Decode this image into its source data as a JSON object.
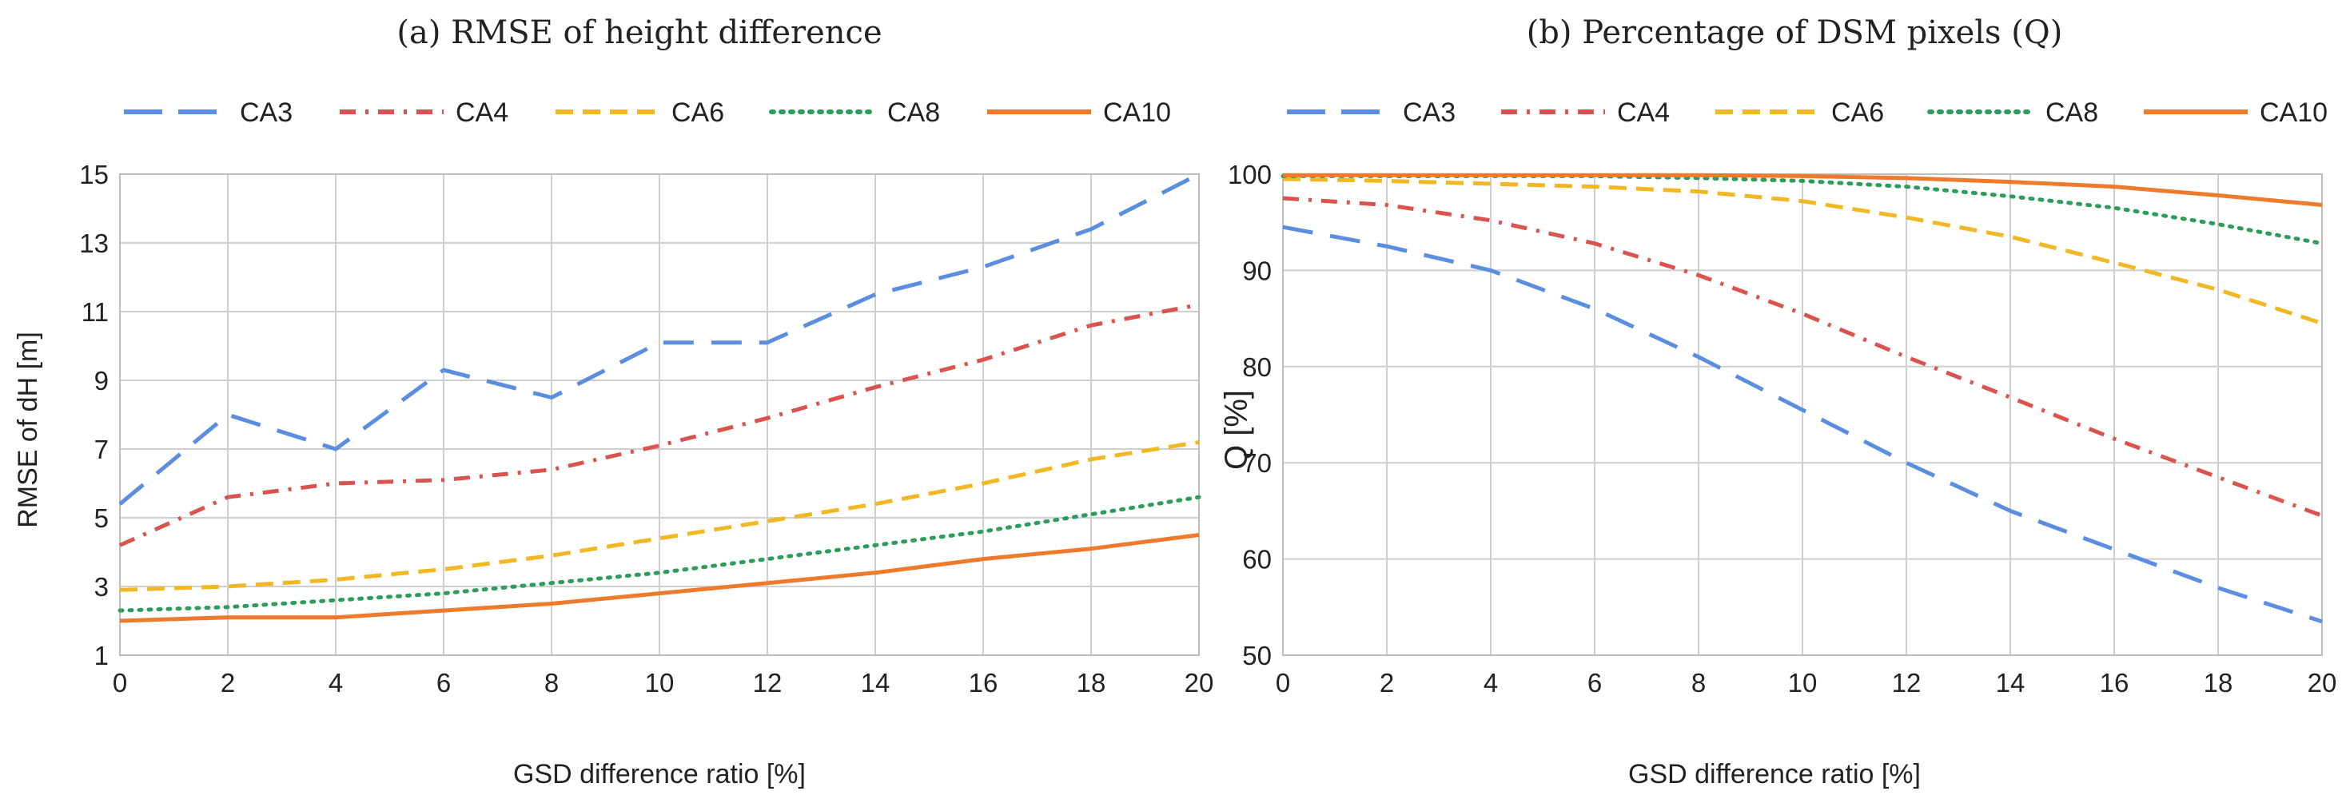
{
  "chart_data": [
    {
      "type": "line",
      "title": "(a) RMSE of height difference",
      "xlabel": "GSD difference ratio [%]",
      "ylabel": "RMSE of dH [m]",
      "xlim": [
        0,
        20
      ],
      "ylim": [
        1,
        15
      ],
      "xticks": [
        "0",
        "2",
        "4",
        "6",
        "8",
        "10",
        "12",
        "14",
        "16",
        "18",
        "20"
      ],
      "yticks": [
        "1",
        "3",
        "5",
        "7",
        "9",
        "11",
        "13",
        "15"
      ],
      "x": [
        0,
        2,
        4,
        6,
        8,
        10,
        12,
        14,
        16,
        18,
        20
      ],
      "legend_position": "top",
      "series": [
        {
          "name": "CA3",
          "color": "#5b8ee0",
          "style": "longdash",
          "values": [
            5.4,
            8.0,
            7.0,
            9.3,
            8.5,
            10.1,
            10.1,
            11.5,
            12.3,
            13.4,
            15.0
          ]
        },
        {
          "name": "CA4",
          "color": "#d9534f",
          "style": "dashdot",
          "values": [
            4.2,
            5.6,
            6.0,
            6.1,
            6.4,
            7.1,
            7.9,
            8.8,
            9.6,
            10.6,
            11.2
          ]
        },
        {
          "name": "CA6",
          "color": "#f2b824",
          "style": "dash",
          "values": [
            2.9,
            3.0,
            3.2,
            3.5,
            3.9,
            4.4,
            4.9,
            5.4,
            6.0,
            6.7,
            7.2
          ]
        },
        {
          "name": "CA8",
          "color": "#2e9d5b",
          "style": "dot",
          "values": [
            2.3,
            2.4,
            2.6,
            2.8,
            3.1,
            3.4,
            3.8,
            4.2,
            4.6,
            5.1,
            5.6
          ]
        },
        {
          "name": "CA10",
          "color": "#f07a2b",
          "style": "solid",
          "values": [
            2.0,
            2.1,
            2.1,
            2.3,
            2.5,
            2.8,
            3.1,
            3.4,
            3.8,
            4.1,
            4.5
          ]
        }
      ]
    },
    {
      "type": "line",
      "title": "(b) Percentage of DSM pixels (Q)",
      "xlabel": "GSD difference ratio [%]",
      "ylabel": "Q [%]",
      "xlim": [
        0,
        20
      ],
      "ylim": [
        50,
        100
      ],
      "xticks": [
        "0",
        "2",
        "4",
        "6",
        "8",
        "10",
        "12",
        "14",
        "16",
        "18",
        "20"
      ],
      "yticks": [
        "50",
        "60",
        "70",
        "80",
        "90",
        "100"
      ],
      "x": [
        0,
        2,
        4,
        6,
        8,
        10,
        12,
        14,
        16,
        18,
        20
      ],
      "legend_position": "top",
      "series": [
        {
          "name": "CA3",
          "color": "#5b8ee0",
          "style": "longdash",
          "values": [
            94.5,
            92.5,
            90.0,
            86.0,
            81.0,
            75.5,
            70.0,
            65.0,
            61.0,
            57.0,
            53.5
          ]
        },
        {
          "name": "CA4",
          "color": "#d9534f",
          "style": "dashdot",
          "values": [
            97.5,
            96.8,
            95.2,
            92.8,
            89.5,
            85.5,
            81.0,
            76.8,
            72.5,
            68.5,
            64.5
          ]
        },
        {
          "name": "CA6",
          "color": "#f2b824",
          "style": "dash",
          "values": [
            99.5,
            99.3,
            99.0,
            98.7,
            98.2,
            97.2,
            95.5,
            93.5,
            90.8,
            88.0,
            84.5
          ]
        },
        {
          "name": "CA8",
          "color": "#2e9d5b",
          "style": "dot",
          "values": [
            99.8,
            99.8,
            99.8,
            99.8,
            99.6,
            99.3,
            98.7,
            97.7,
            96.5,
            94.8,
            92.8
          ]
        },
        {
          "name": "CA10",
          "color": "#f07a2b",
          "style": "solid",
          "values": [
            99.9,
            99.9,
            99.9,
            99.9,
            99.9,
            99.8,
            99.6,
            99.2,
            98.7,
            97.8,
            96.8
          ]
        }
      ]
    }
  ]
}
